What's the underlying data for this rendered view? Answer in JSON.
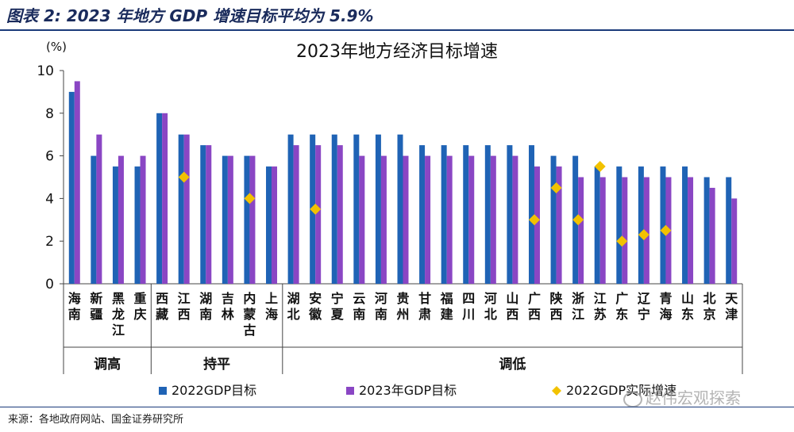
{
  "header": {
    "title": "图表 2:   2023 年地方 GDP 增速目标平均为 5.9%"
  },
  "source": "来源：各地政府网站、国金证券研究所",
  "watermark": "赵伟宏观探索",
  "colors": {
    "s2022": "#1f63b5",
    "s2023": "#8a46c4",
    "actual": "#f2c200"
  },
  "chart_data": {
    "type": "bar",
    "title": "2023年地方经济目标增速",
    "ylabel": "(%)",
    "ylim": [
      0,
      10
    ],
    "yticks": [
      0,
      2,
      4,
      6,
      8,
      10
    ],
    "categories": [
      "海南",
      "新疆",
      "黑龙江",
      "重庆",
      "西藏",
      "江西",
      "湖南",
      "吉林",
      "内蒙古",
      "上海",
      "湖北",
      "安徽",
      "宁夏",
      "云南",
      "河南",
      "贵州",
      "甘肃",
      "福建",
      "四川",
      "河北",
      "山西",
      "广西",
      "陕西",
      "浙江",
      "江苏",
      "广东",
      "辽宁",
      "青海",
      "山东",
      "北京",
      "天津"
    ],
    "series": [
      {
        "name": "2022GDP目标",
        "values": [
          9,
          6,
          5.5,
          5.5,
          8,
          7,
          6.5,
          6,
          6,
          5.5,
          7,
          7,
          7,
          7,
          7,
          7,
          6.5,
          6.5,
          6.5,
          6.5,
          6.5,
          6.5,
          6,
          6,
          5.5,
          5.5,
          5.5,
          5.5,
          5.5,
          5,
          5
        ]
      },
      {
        "name": "2023年GDP目标",
        "values": [
          9.5,
          7,
          6,
          6,
          8,
          7,
          6.5,
          6,
          6,
          5.5,
          6.5,
          6.5,
          6.5,
          6,
          6,
          6,
          6,
          6,
          6,
          6,
          6,
          5.5,
          5.5,
          5,
          5,
          5,
          5,
          5,
          5,
          4.5,
          4
        ]
      },
      {
        "name": "2022GDP实际增速",
        "type": "scatter",
        "values": [
          null,
          null,
          null,
          null,
          null,
          5,
          null,
          null,
          4,
          null,
          null,
          3.5,
          null,
          null,
          null,
          null,
          null,
          null,
          null,
          null,
          null,
          3,
          4.5,
          3,
          5.5,
          2,
          2.3,
          2.5,
          null,
          null,
          null
        ]
      }
    ],
    "groups": [
      {
        "label": "调高",
        "start": 0,
        "end": 3
      },
      {
        "label": "持平",
        "start": 4,
        "end": 9
      },
      {
        "label": "调低",
        "start": 10,
        "end": 30
      }
    ],
    "legend": [
      "2022GDP目标",
      "2023年GDP目标",
      "2022GDP实际增速"
    ]
  }
}
